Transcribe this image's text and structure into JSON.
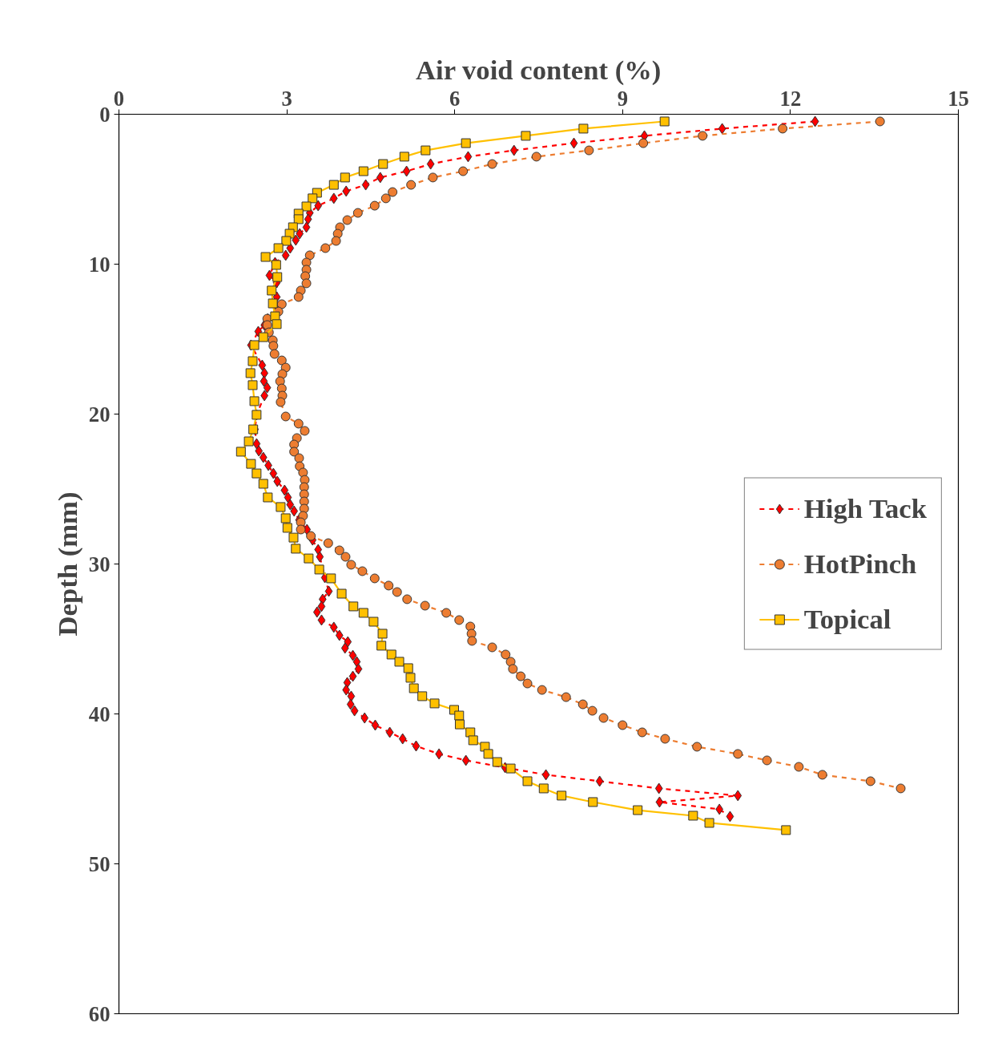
{
  "chart_data": {
    "type": "line",
    "xlabel": "Air void content (%)",
    "ylabel": "Depth (mm)",
    "xlim": [
      0,
      15
    ],
    "xticks": [
      0,
      3,
      6,
      9,
      12,
      15
    ],
    "ylim": [
      60,
      0
    ],
    "yticks": [
      0,
      10,
      20,
      30,
      40,
      50,
      60
    ],
    "grid": false,
    "legend": "right",
    "series": [
      {
        "name": "High Tack",
        "color": "#ff0000",
        "line_style": "dashed",
        "marker": "diamond",
        "x": [
          12.44,
          10.78,
          9.39,
          8.13,
          7.06,
          6.24,
          5.57,
          5.14,
          4.67,
          4.41,
          4.06,
          3.84,
          3.56,
          3.41,
          3.38,
          3.35,
          3.23,
          3.16,
          3.06,
          2.98,
          2.79,
          2.69,
          2.82,
          2.82,
          2.83,
          2.66,
          2.6,
          2.49,
          2.36,
          2.56,
          2.6,
          2.59,
          2.65,
          2.6,
          2.46,
          2.43,
          2.46,
          2.5,
          2.58,
          2.67,
          2.76,
          2.83,
          2.96,
          3.02,
          3.06,
          3.13,
          3.22,
          3.36,
          3.46,
          3.56,
          3.59,
          3.68,
          3.75,
          3.64,
          3.62,
          3.54,
          3.62,
          3.84,
          3.94,
          4.09,
          4.04,
          4.18,
          4.25,
          4.28,
          4.18,
          4.08,
          4.06,
          4.15,
          4.14,
          4.21,
          4.39,
          4.58,
          4.84,
          5.07,
          5.31,
          5.72,
          6.2,
          6.9,
          7.63,
          8.59,
          9.65,
          11.06,
          9.66,
          10.73,
          10.92
        ],
        "values": [
          0.48,
          0.96,
          1.44,
          1.93,
          2.41,
          2.83,
          3.32,
          3.8,
          4.22,
          4.71,
          5.13,
          5.61,
          6.1,
          6.58,
          7.0,
          7.54,
          7.97,
          8.4,
          8.93,
          9.41,
          9.89,
          10.75,
          11.23,
          12.19,
          12.94,
          13.64,
          14.06,
          14.49,
          15.4,
          16.74,
          17.27,
          17.81,
          18.24,
          18.77,
          20.05,
          21.02,
          21.98,
          22.46,
          22.89,
          23.42,
          23.96,
          24.49,
          25.08,
          25.56,
          26.04,
          26.47,
          27.06,
          27.7,
          28.4,
          29.04,
          29.52,
          30.91,
          31.82,
          32.35,
          32.83,
          33.21,
          33.74,
          34.22,
          34.76,
          35.19,
          35.61,
          36.1,
          36.52,
          37.0,
          37.49,
          37.91,
          38.4,
          38.82,
          39.36,
          39.79,
          40.27,
          40.75,
          41.23,
          41.66,
          42.14,
          42.67,
          43.1,
          43.58,
          44.06,
          44.49,
          44.97,
          45.45,
          45.88,
          46.36,
          46.84
        ]
      },
      {
        "name": "HotPinch",
        "color": "#ed7d31",
        "line_style": "dashed",
        "marker": "circle",
        "x": [
          13.6,
          11.86,
          10.43,
          9.37,
          8.4,
          7.46,
          6.67,
          6.15,
          5.61,
          5.22,
          4.89,
          4.77,
          4.57,
          4.27,
          4.08,
          3.95,
          3.91,
          3.88,
          3.69,
          3.41,
          3.35,
          3.35,
          3.33,
          3.35,
          3.25,
          3.21,
          2.91,
          2.85,
          2.65,
          2.65,
          2.68,
          2.75,
          2.76,
          2.78,
          2.91,
          2.98,
          2.92,
          2.88,
          2.91,
          2.92,
          2.89,
          2.98,
          3.21,
          3.32,
          3.18,
          3.13,
          3.13,
          3.22,
          3.23,
          3.29,
          3.32,
          3.31,
          3.31,
          3.31,
          3.31,
          3.29,
          3.25,
          3.25,
          3.43,
          3.74,
          3.94,
          4.05,
          4.15,
          4.35,
          4.57,
          4.82,
          4.97,
          5.15,
          5.47,
          5.85,
          6.08,
          6.28,
          6.3,
          6.31,
          6.67,
          6.91,
          7.0,
          7.04,
          7.18,
          7.3,
          7.56,
          7.99,
          8.29,
          8.46,
          8.66,
          9.0,
          9.35,
          9.76,
          10.33,
          11.06,
          11.58,
          12.15,
          12.57,
          13.43,
          13.97
        ],
        "values": [
          0.48,
          0.96,
          1.44,
          1.93,
          2.41,
          2.83,
          3.32,
          3.8,
          4.22,
          4.71,
          5.19,
          5.61,
          6.1,
          6.58,
          7.06,
          7.54,
          7.97,
          8.45,
          8.93,
          9.41,
          9.89,
          10.37,
          10.8,
          11.28,
          11.76,
          12.19,
          12.67,
          13.16,
          13.64,
          14.06,
          14.55,
          15.08,
          15.45,
          15.99,
          16.42,
          16.9,
          17.33,
          17.81,
          18.29,
          18.77,
          19.2,
          20.16,
          20.64,
          21.12,
          21.6,
          22.03,
          22.51,
          22.94,
          23.48,
          23.9,
          24.39,
          24.87,
          25.35,
          25.83,
          26.31,
          26.79,
          27.22,
          27.7,
          28.13,
          28.61,
          29.09,
          29.52,
          30.05,
          30.48,
          30.96,
          31.44,
          31.87,
          32.35,
          32.78,
          33.26,
          33.74,
          34.17,
          34.65,
          35.13,
          35.56,
          36.04,
          36.52,
          37.0,
          37.49,
          37.97,
          38.4,
          38.88,
          39.36,
          39.79,
          40.27,
          40.75,
          41.23,
          41.66,
          42.19,
          42.67,
          43.1,
          43.53,
          44.06,
          44.49,
          44.97
        ]
      },
      {
        "name": "Topical",
        "color": "#ffc000",
        "line_style": "solid",
        "marker": "square",
        "x": [
          9.75,
          8.3,
          7.27,
          6.2,
          5.48,
          5.1,
          4.72,
          4.37,
          4.04,
          3.84,
          3.54,
          3.46,
          3.35,
          3.21,
          3.21,
          3.11,
          3.05,
          2.99,
          2.85,
          2.62,
          2.81,
          2.83,
          2.73,
          2.75,
          2.79,
          2.82,
          2.58,
          2.42,
          2.39,
          2.35,
          2.39,
          2.42,
          2.46,
          2.4,
          2.32,
          2.18,
          2.36,
          2.46,
          2.58,
          2.66,
          2.89,
          2.98,
          3.01,
          3.12,
          3.16,
          3.39,
          3.58,
          3.79,
          3.98,
          4.19,
          4.37,
          4.55,
          4.71,
          4.69,
          4.87,
          5.01,
          5.17,
          5.21,
          5.27,
          5.42,
          5.64,
          5.99,
          6.08,
          6.09,
          6.28,
          6.33,
          6.54,
          6.6,
          6.76,
          7.0,
          7.3,
          7.59,
          7.91,
          8.47,
          9.27,
          10.26,
          10.55,
          11.92
        ],
        "values": [
          0.48,
          0.96,
          1.44,
          1.93,
          2.41,
          2.83,
          3.32,
          3.8,
          4.22,
          4.71,
          5.24,
          5.61,
          6.15,
          6.63,
          7.0,
          7.54,
          7.97,
          8.45,
          8.93,
          9.52,
          10.05,
          10.86,
          11.76,
          12.62,
          13.48,
          14.0,
          14.87,
          15.4,
          16.47,
          17.27,
          18.07,
          19.14,
          20.05,
          21.02,
          21.82,
          22.51,
          23.32,
          23.96,
          24.65,
          25.56,
          26.2,
          26.95,
          27.59,
          28.24,
          28.98,
          29.63,
          30.37,
          30.96,
          31.98,
          32.83,
          33.26,
          33.85,
          34.65,
          35.45,
          36.04,
          36.52,
          36.95,
          37.59,
          38.29,
          38.82,
          39.3,
          39.73,
          40.11,
          40.7,
          41.23,
          41.76,
          42.19,
          42.67,
          43.21,
          43.64,
          44.49,
          44.97,
          45.45,
          45.88,
          46.42,
          46.79,
          47.27,
          47.75
        ]
      }
    ]
  }
}
